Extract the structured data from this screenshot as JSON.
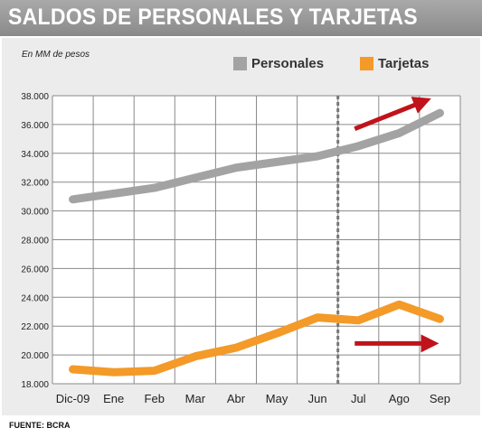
{
  "header": {
    "title": "SALDOS DE PERSONALES Y TARJETAS"
  },
  "chart_data": {
    "type": "line",
    "title": "SALDOS DE PERSONALES Y TARJETAS",
    "subtitle": "En MM de pesos",
    "categories": [
      "Dic-09",
      "Ene",
      "Feb",
      "Mar",
      "Abr",
      "May",
      "Jun",
      "Jul",
      "Ago",
      "Sep"
    ],
    "y_ticks": [
      "38.000",
      "36.000",
      "34.000",
      "32.000",
      "30.000",
      "28.000",
      "26.000",
      "24.000",
      "22.000",
      "20.000",
      "18.000"
    ],
    "ylim": [
      18000,
      38000
    ],
    "grid": true,
    "legend_position": "top-right",
    "series": [
      {
        "name": "Personales",
        "color": "#a3a3a3",
        "values": [
          30800,
          31200,
          31600,
          32300,
          33000,
          33400,
          33800,
          34500,
          35400,
          36800
        ]
      },
      {
        "name": "Tarjetas",
        "color": "#f39a29",
        "values": [
          19000,
          18800,
          18900,
          19900,
          20500,
          21500,
          22600,
          22400,
          23500,
          22500
        ]
      }
    ],
    "annotations": {
      "divider_after_category": "Jun",
      "arrows": [
        {
          "series": "Personales",
          "direction": "up",
          "color": "#c0131b"
        },
        {
          "series": "Tarjetas",
          "direction": "flat",
          "color": "#c0131b"
        }
      ]
    }
  },
  "footer": {
    "source": "FUENTE: BCRA"
  }
}
